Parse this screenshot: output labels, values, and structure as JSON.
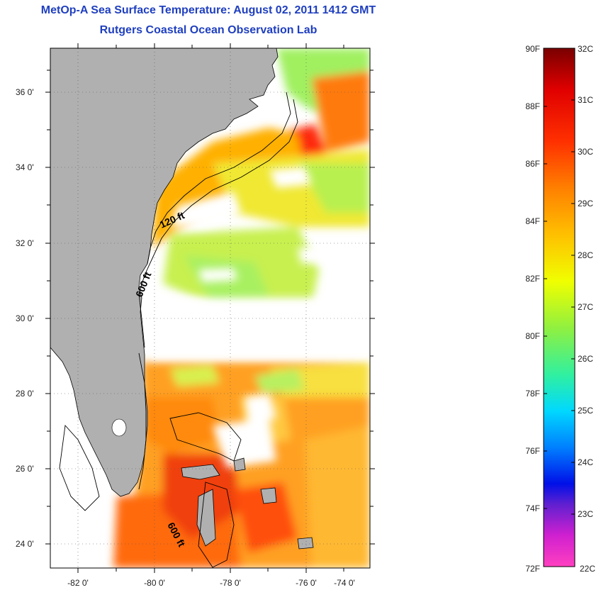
{
  "header": {
    "title": "MetOp-A Sea Surface Temperature:  August 02, 2011 1412 GMT",
    "subtitle": "Rutgers Coastal Ocean Observation Lab"
  },
  "map": {
    "lat_ticks": [
      "36 0'",
      "34 0'",
      "32 0'",
      "30 0'",
      "28 0'",
      "26 0'",
      "24 0'"
    ],
    "lon_ticks": [
      "-82 0'",
      "-80 0'",
      "-78 0'",
      "-76 0'",
      "-74 0'"
    ],
    "isobath_labels": [
      "120 ft",
      "600 ft",
      "600 ft"
    ],
    "colors": {
      "land": "#b0b0b0",
      "cloud": "#ffffff"
    }
  },
  "colorbar": {
    "fahrenheit": [
      "90F",
      "88F",
      "86F",
      "84F",
      "82F",
      "80F",
      "78F",
      "76F",
      "74F",
      "72F"
    ],
    "celsius": [
      "32C",
      "31C",
      "30C",
      "29C",
      "28C",
      "27C",
      "26C",
      "25C",
      "24C",
      "23C",
      "22C"
    ]
  }
}
